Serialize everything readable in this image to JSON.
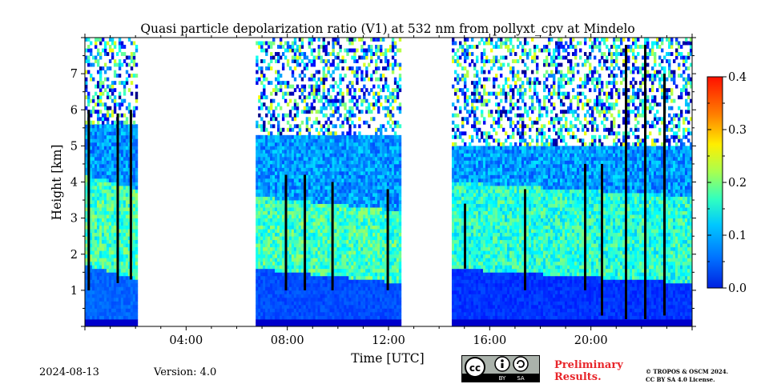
{
  "chart_data": {
    "type": "heatmap",
    "title": "Quasi particle depolarization ratio (V1) at 532 nm from pollyxt_cpv at Mindelo",
    "xlabel": "Time [UTC]",
    "ylabel": "Height [km]",
    "x_ticks": [
      "04:00",
      "08:00",
      "12:00",
      "16:00",
      "20:00"
    ],
    "y_ticks": [
      "1",
      "2",
      "3",
      "4",
      "5",
      "6",
      "7"
    ],
    "xlim_hours": [
      0,
      24
    ],
    "ylim_km": [
      0,
      8
    ],
    "colorbar": {
      "ticks": [
        "0.0",
        "0.1",
        "0.2",
        "0.3",
        "0.4"
      ],
      "range": [
        0.0,
        0.4
      ],
      "colormap": "jet"
    },
    "data_gaps_utc": [
      [
        "02:05",
        "06:45"
      ],
      [
        "12:30",
        "14:30"
      ]
    ],
    "data_segments": [
      {
        "start": "00:00",
        "end": "02:05",
        "dust_layer_km": [
          1.7,
          4.2
        ],
        "ratio_in_layer": 0.18,
        "ratio_below": 0.08
      },
      {
        "start": "06:45",
        "end": "12:30",
        "dust_layer_km": [
          1.6,
          3.6
        ],
        "ratio_in_layer": 0.18,
        "ratio_below": 0.07,
        "upper_layer_km": [
          4.5,
          5.5
        ],
        "ratio_upper": 0.13
      },
      {
        "start": "14:30",
        "end": "24:00",
        "dust_layer_km": [
          1.6,
          4.0
        ],
        "ratio_in_layer": 0.17,
        "ratio_below": 0.06
      }
    ]
  },
  "footer": {
    "date": "2024-08-13",
    "version": "Version: 4.0",
    "preliminary": [
      "Preliminary",
      "Results."
    ],
    "copyright": [
      "© TROPOS & OSCM 2024.",
      "CC BY SA 4.0 License."
    ],
    "license_badge": [
      "BY",
      "SA"
    ]
  },
  "colors": {
    "jet": [
      "#00007f",
      "#0000ff",
      "#007fff",
      "#00ffff",
      "#7fff7f",
      "#ffff00",
      "#ff7f00",
      "#ff0000",
      "#7f0000"
    ],
    "prelim": "#e8262b"
  }
}
